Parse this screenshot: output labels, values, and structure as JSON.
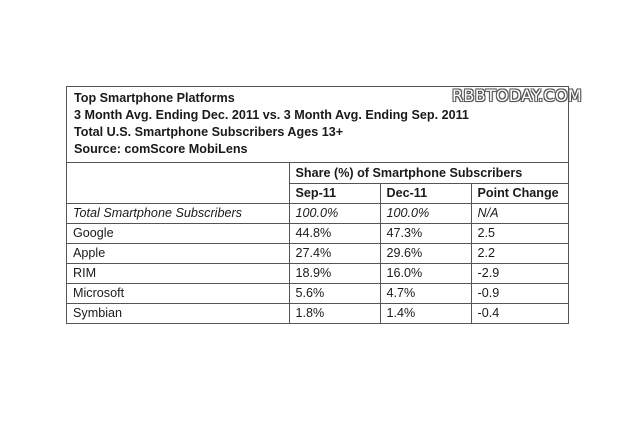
{
  "watermark": "RBBTODAY.COM",
  "chart_data": {
    "type": "table",
    "title_lines": [
      "Top Smartphone Platforms",
      "3 Month Avg. Ending Dec. 2011 vs. 3 Month Avg. Ending Sep. 2011",
      "Total U.S. Smartphone Subscribers Ages 13+",
      "Source: comScore MobiLens"
    ],
    "group_header": "Share (%) of Smartphone Subscribers",
    "columns": [
      "Sep-11",
      "Dec-11",
      "Point Change"
    ],
    "rows": [
      {
        "name": "Total Smartphone Subscribers",
        "values": [
          "100.0%",
          "100.0%",
          "N/A"
        ]
      },
      {
        "name": "Google",
        "values": [
          "44.8%",
          "47.3%",
          "2.5"
        ]
      },
      {
        "name": "Apple",
        "values": [
          "27.4%",
          "29.6%",
          "2.2"
        ]
      },
      {
        "name": "RIM",
        "values": [
          "18.9%",
          "16.0%",
          "-2.9"
        ]
      },
      {
        "name": "Microsoft",
        "values": [
          "5.6%",
          "4.7%",
          "-0.9"
        ]
      },
      {
        "name": "Symbian",
        "values": [
          "1.8%",
          "1.4%",
          "-0.4"
        ]
      }
    ]
  }
}
